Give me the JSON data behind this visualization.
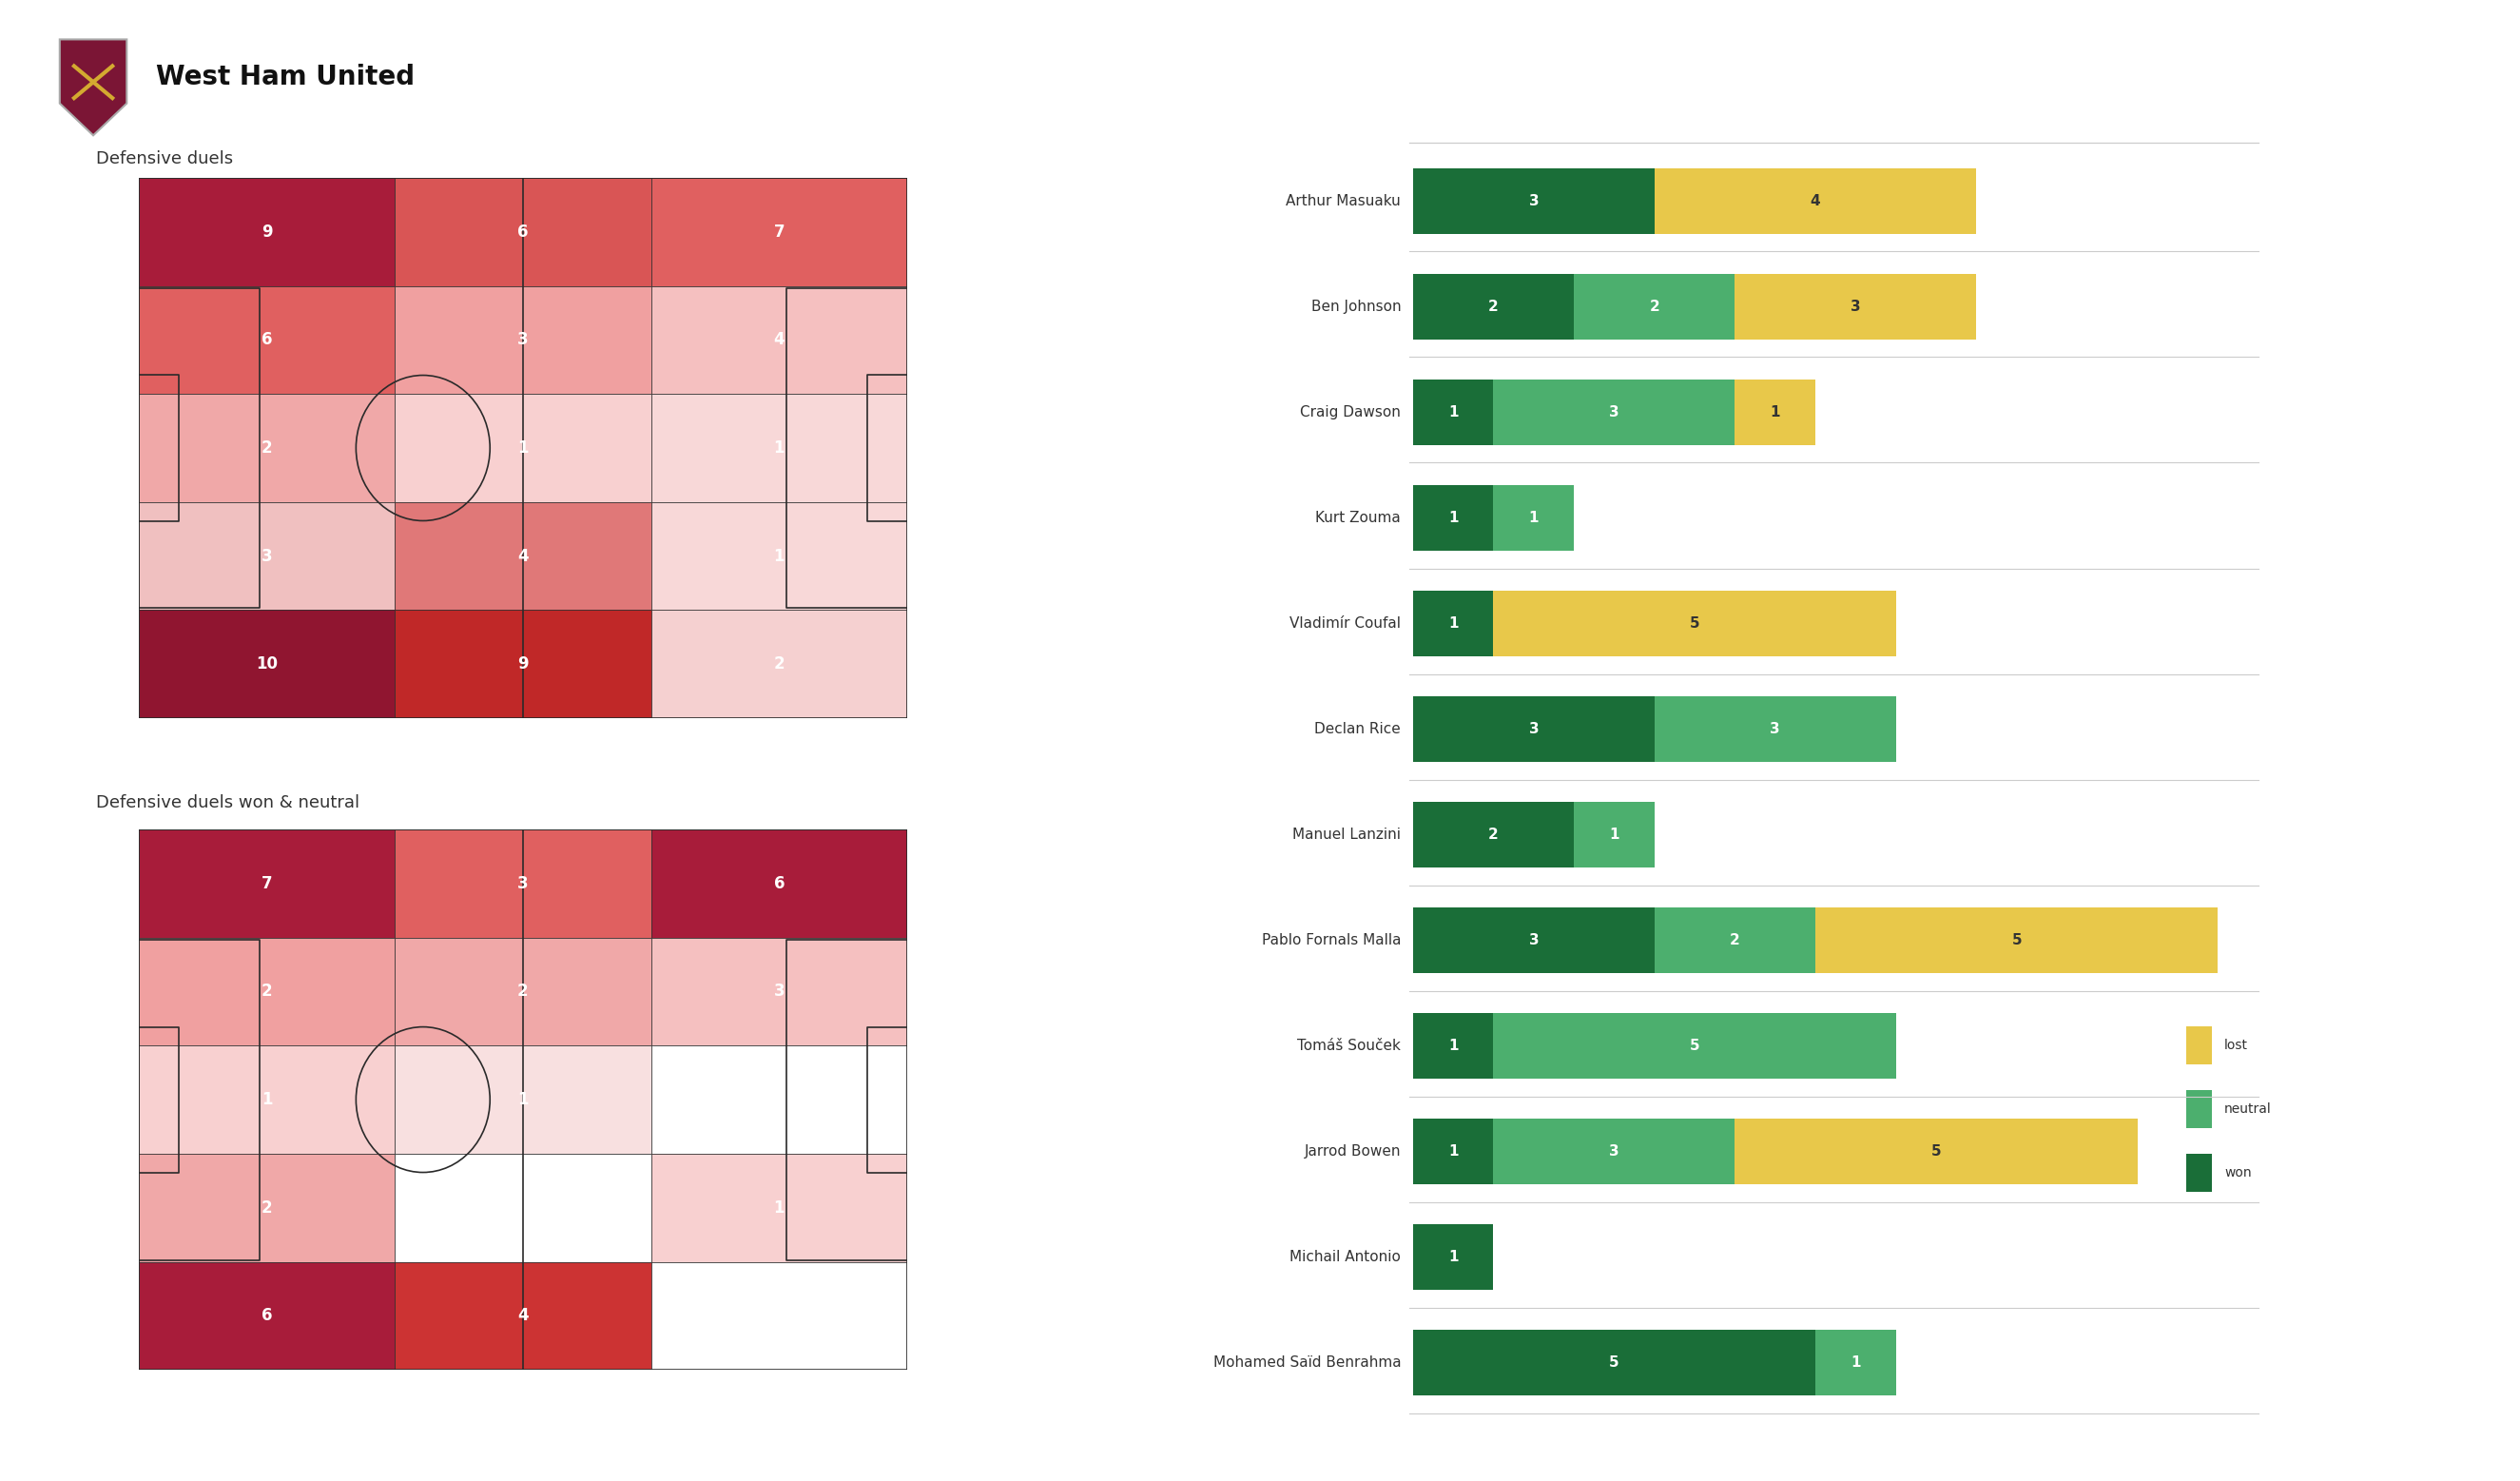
{
  "title": "West Ham United",
  "subtitle1": "Defensive duels",
  "subtitle2": "Defensive duels won & neutral",
  "pitch_grid1": {
    "values": [
      [
        9,
        6,
        7
      ],
      [
        6,
        3,
        4
      ],
      [
        2,
        1,
        1
      ],
      [
        3,
        4,
        1
      ],
      [
        10,
        9,
        2
      ]
    ],
    "colors": [
      [
        "#a81c3a",
        "#d95555",
        "#e06060"
      ],
      [
        "#e06060",
        "#f0a0a0",
        "#f5c0c0"
      ],
      [
        "#f0a8a8",
        "#f8d0d0",
        "#f8d8d8"
      ],
      [
        "#f0c0c0",
        "#e07878",
        "#f8d8d8"
      ],
      [
        "#901530",
        "#c02828",
        "#f5d0d0"
      ]
    ]
  },
  "pitch_grid2": {
    "values": [
      [
        7,
        3,
        6
      ],
      [
        2,
        2,
        3
      ],
      [
        1,
        1,
        0
      ],
      [
        2,
        0,
        1
      ],
      [
        6,
        4,
        0
      ]
    ],
    "colors": [
      [
        "#a81c3a",
        "#e06060",
        "#a81c3a"
      ],
      [
        "#f0a0a0",
        "#f0a8a8",
        "#f5c0c0"
      ],
      [
        "#f8d0d0",
        "#f8e0e0",
        "#ffffff"
      ],
      [
        "#f0a8a8",
        "#ffffff",
        "#f8d0d0"
      ],
      [
        "#a81c3a",
        "#cc3333",
        "#ffffff"
      ]
    ]
  },
  "players": [
    {
      "name": "Arthur Masuaku",
      "won": 3,
      "neutral": 0,
      "lost": 4
    },
    {
      "name": "Ben Johnson",
      "won": 2,
      "neutral": 2,
      "lost": 3
    },
    {
      "name": "Craig Dawson",
      "won": 1,
      "neutral": 3,
      "lost": 1
    },
    {
      "name": "Kurt Zouma",
      "won": 1,
      "neutral": 1,
      "lost": 0
    },
    {
      "name": "Vladimír Coufal",
      "won": 1,
      "neutral": 0,
      "lost": 5
    },
    {
      "name": "Declan Rice",
      "won": 3,
      "neutral": 3,
      "lost": 0
    },
    {
      "name": "Manuel Lanzini",
      "won": 2,
      "neutral": 1,
      "lost": 0
    },
    {
      "name": "Pablo Fornals Malla",
      "won": 3,
      "neutral": 2,
      "lost": 5
    },
    {
      "name": "Tomáš Souček",
      "won": 1,
      "neutral": 5,
      "lost": 0
    },
    {
      "name": "Jarrod Bowen",
      "won": 1,
      "neutral": 3,
      "lost": 5
    },
    {
      "name": "Michail Antonio",
      "won": 1,
      "neutral": 0,
      "lost": 0
    },
    {
      "name": "Mohamed Saïd Benrahma",
      "won": 5,
      "neutral": 1,
      "lost": 0
    }
  ],
  "color_won": "#1a6e38",
  "color_neutral": "#4caf6e",
  "color_lost": "#e8c84a",
  "background_color": "#ffffff",
  "pitch_line_color": "#2a2a2a",
  "unit": 1.0,
  "bar_height": 0.62,
  "legend_items": [
    {
      "color": "#e8c84a",
      "label": "lost"
    },
    {
      "color": "#4caf6e",
      "label": "neutral"
    },
    {
      "color": "#1a6e38",
      "label": "won"
    }
  ]
}
